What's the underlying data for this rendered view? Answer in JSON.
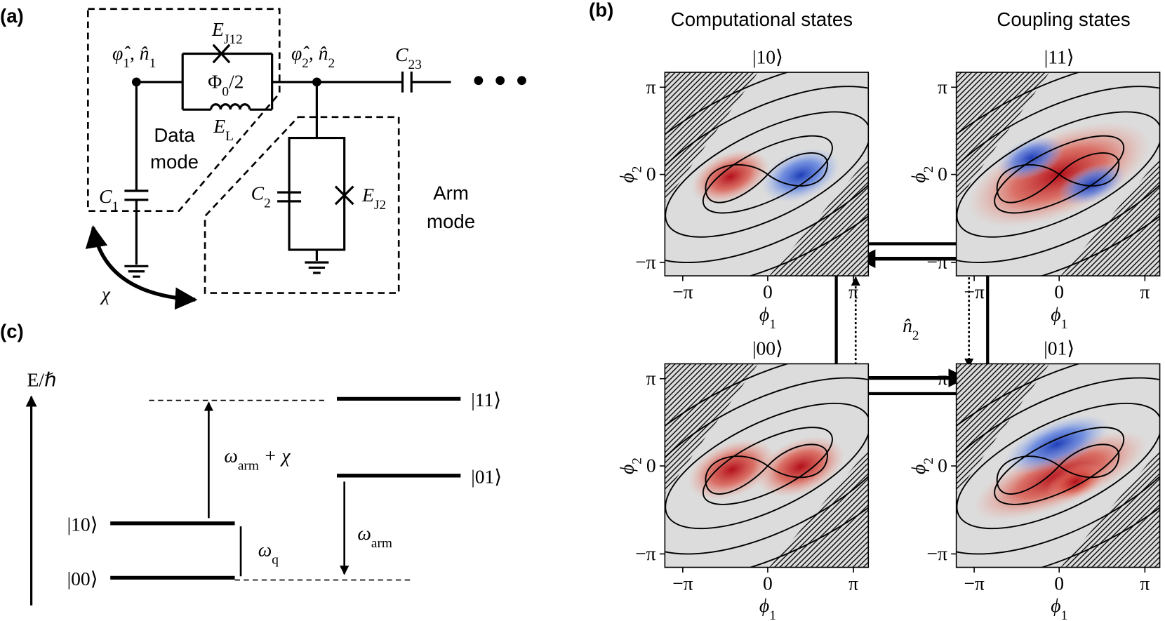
{
  "panels": {
    "a": "(a)",
    "b": "(b)",
    "c": "(c)"
  },
  "circuit": {
    "ej12": [
      "E",
      "J12"
    ],
    "node1": [
      "φ̂",
      "1",
      ", n̂",
      "1"
    ],
    "flux": [
      "Φ",
      "0",
      "/2"
    ],
    "node2": [
      "φ̂",
      "2",
      ", n̂",
      "2"
    ],
    "c23": [
      "C",
      "23"
    ],
    "el": [
      "E",
      "L"
    ],
    "data_mode": [
      "Data",
      "mode"
    ],
    "c1": [
      "C",
      "1"
    ],
    "c2": [
      "C",
      "2"
    ],
    "ej2": [
      "E",
      "J2"
    ],
    "arm_mode": [
      "Arm",
      "mode"
    ],
    "chi": "χ"
  },
  "wavefunctions": {
    "column_titles": [
      "Computational states",
      "Coupling states"
    ],
    "states": [
      "|10⟩",
      "|11⟩",
      "|00⟩",
      "|01⟩"
    ],
    "ticks": [
      "−π",
      "0",
      "π"
    ],
    "xlabel": [
      "ϕ",
      "1"
    ],
    "ylabel": [
      "ϕ",
      "2"
    ],
    "operator": [
      "n̂",
      "2"
    ]
  },
  "levels": {
    "axis": "E/ℏ",
    "states": [
      "|11⟩",
      "|01⟩",
      "|10⟩",
      "|00⟩"
    ],
    "gaps": [
      [
        "ω",
        "arm",
        " + χ"
      ],
      [
        "ω",
        "q"
      ],
      [
        "ω",
        "arm"
      ]
    ]
  }
}
